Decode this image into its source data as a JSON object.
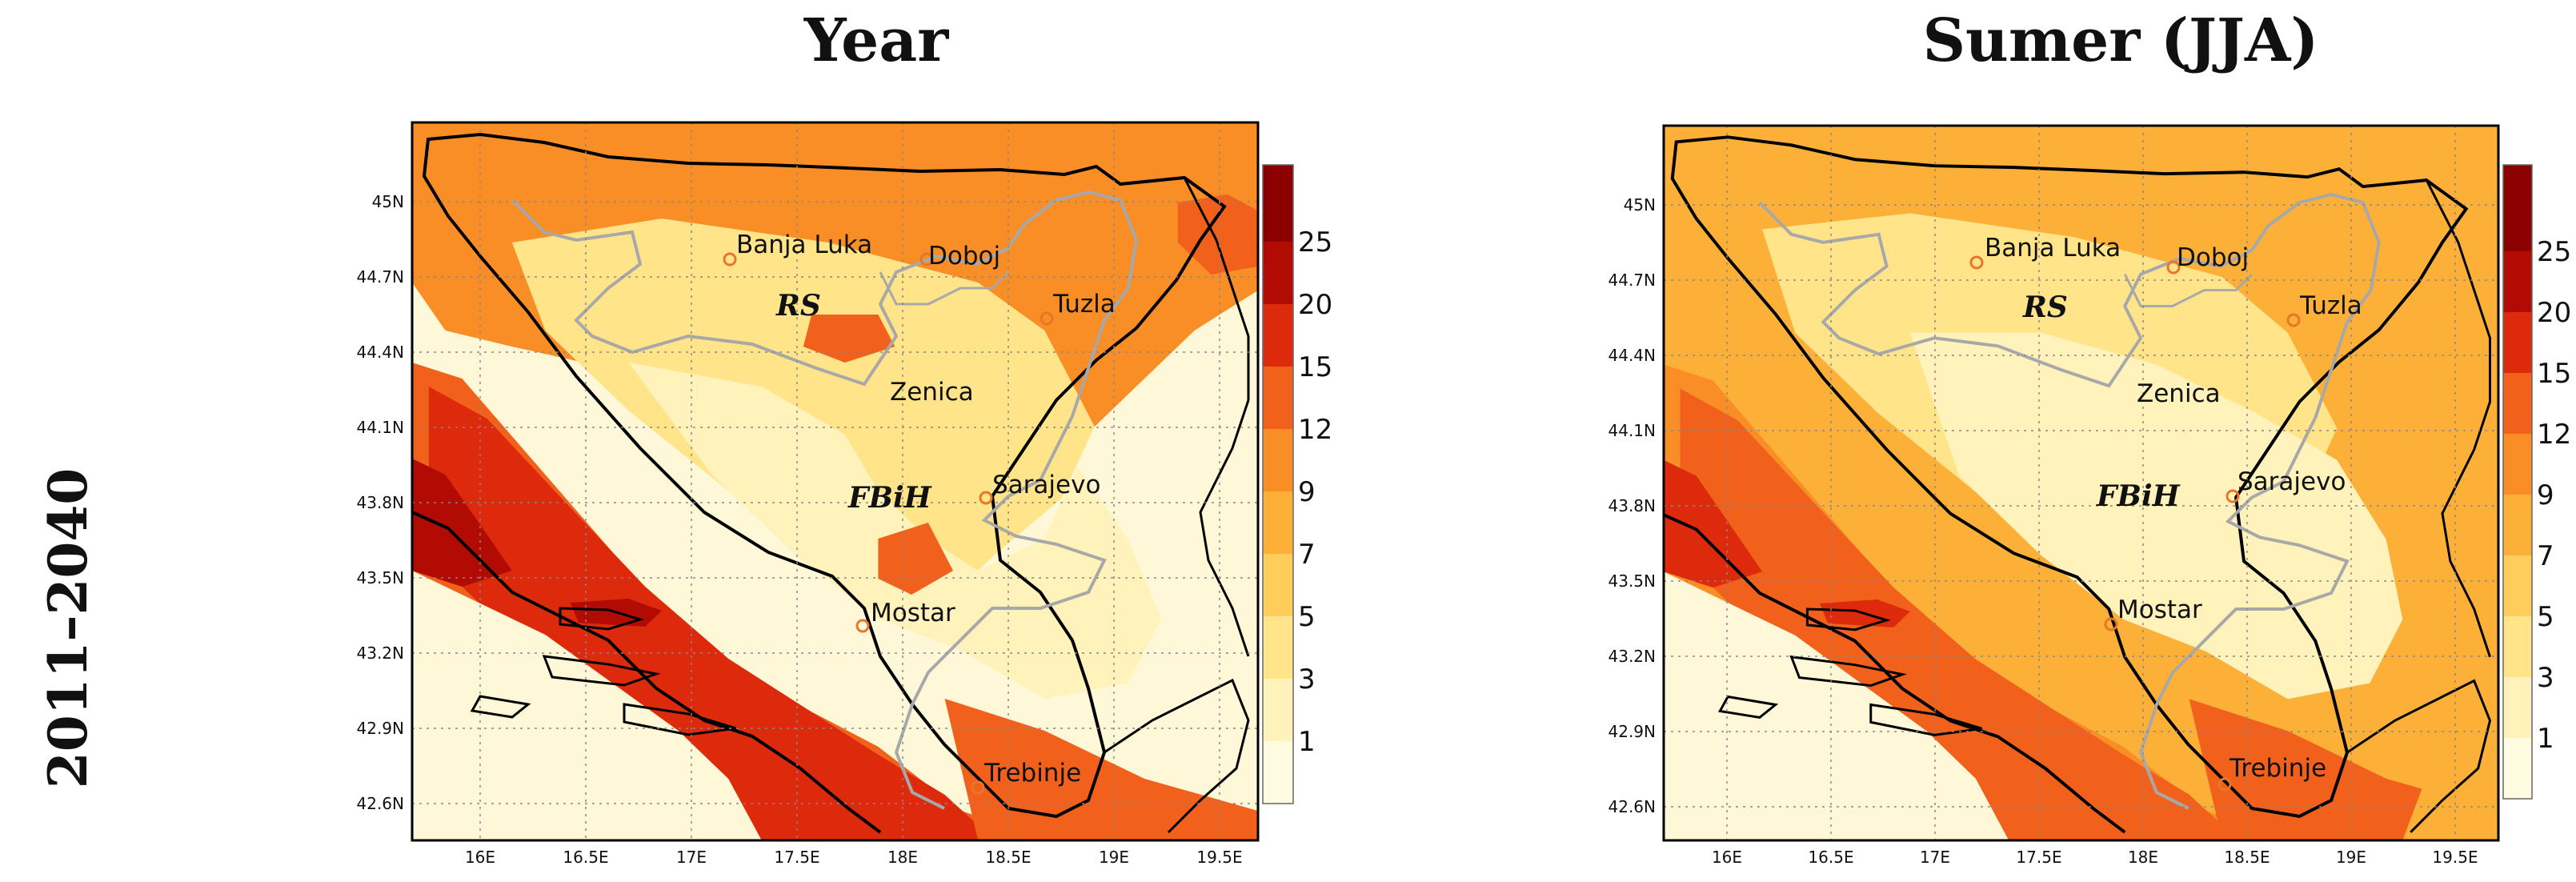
{
  "figure": {
    "row_label": "2011–2040",
    "colorbar": {
      "levels": [
        "1",
        "3",
        "5",
        "7",
        "9",
        "12",
        "15",
        "20",
        "25"
      ],
      "colors": [
        "#fffbe0",
        "#fff2bb",
        "#ffe48a",
        "#ffce5a",
        "#fdb038",
        "#f98d26",
        "#f2611b",
        "#dd2a0c",
        "#b20b04",
        "#8b0000"
      ]
    },
    "x_ticks": [
      "16E",
      "16.5E",
      "17E",
      "17.5E",
      "18E",
      "18.5E",
      "19E",
      "19.5E"
    ],
    "y_ticks": [
      "45N",
      "44.7N",
      "44.4N",
      "44.1N",
      "43.8N",
      "43.5N",
      "43.2N",
      "42.9N",
      "42.6N"
    ],
    "cities": [
      "Banja Luka",
      "Doboj",
      "Tuzla",
      "Zenica",
      "Sarajevo",
      "Mostar",
      "Trebinje"
    ],
    "entities": [
      "RS",
      "FBiH"
    ],
    "colors": {
      "city_marker": "#e8762a",
      "country_border": "#000000",
      "entity_border": "#a8a8a8",
      "grid": "#888888"
    }
  },
  "panels": [
    {
      "id": "year",
      "title": "Year"
    },
    {
      "id": "summer",
      "title": "Sumer (JJA)"
    }
  ]
}
